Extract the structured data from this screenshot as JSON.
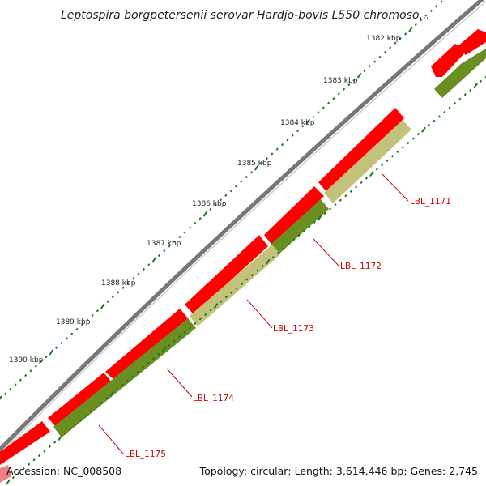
{
  "title": "Leptospira borgpetersenii serovar Hardjo-bovis L550 chromoso...",
  "kbp_labels": [
    "1382 kbp",
    "1383 kbp",
    "1384 kbp",
    "1385 kbp",
    "1386 kbp",
    "1387 kbp",
    "1388 kbp",
    "1389 kbp",
    "1390 kbp"
  ],
  "genes": [
    {
      "label": "LBL_1171"
    },
    {
      "label": "LBL_1172"
    },
    {
      "label": "LBL_1173"
    },
    {
      "label": "LBL_1174"
    },
    {
      "label": "LBL_1175"
    }
  ],
  "footer": {
    "accession": "Accession: NC_008508",
    "summary": "Topology: circular; Length: 3,614,446 bp; Genes: 2,745"
  },
  "colors": {
    "forward_cds": "#ff0000",
    "reverse_cds": "#6b8e23",
    "reverse_cds_light": "#c2c27a",
    "backbone": "#808080",
    "tick": "#1a7a1a",
    "label": "#cc0000"
  }
}
